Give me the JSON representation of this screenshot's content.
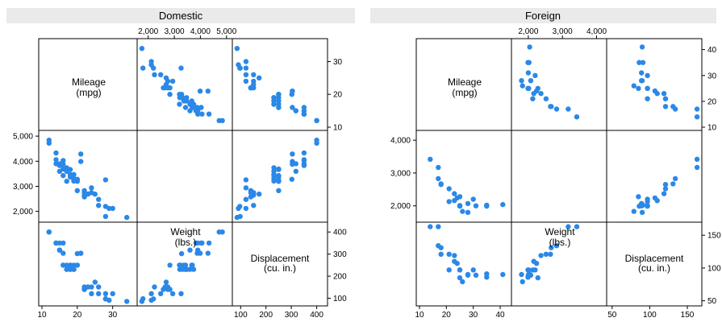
{
  "chart_data": [
    {
      "type": "scatter",
      "title": "Domestic",
      "variables": [
        {
          "label": "Mileage",
          "unit": "(mpg)",
          "range": [
            10,
            36
          ],
          "ticks": [
            10,
            20,
            30
          ],
          "tick_labels": [
            "10",
            "20",
            "30"
          ]
        },
        {
          "label": "Weight",
          "unit": "(lbs.)",
          "range": [
            1700,
            5100
          ],
          "ticks": [
            2000,
            3000,
            4000,
            5000
          ],
          "tick_labels": [
            "2,000",
            "3,000",
            "4,000",
            "5,000"
          ]
        },
        {
          "label": "Displacement",
          "unit": "(cu. in.)",
          "range": [
            80,
            430
          ],
          "ticks": [
            100,
            200,
            300,
            400
          ],
          "tick_labels": [
            "100",
            "200",
            "300",
            "400"
          ]
        }
      ],
      "records": [
        [
          12,
          4720,
          400
        ],
        [
          12,
          4840,
          400
        ],
        [
          14,
          4060,
          350
        ],
        [
          14,
          3900,
          350
        ],
        [
          14,
          4330,
          350
        ],
        [
          15,
          3600,
          318
        ],
        [
          15,
          3830,
          350
        ],
        [
          15,
          3900,
          318
        ],
        [
          16,
          3690,
          250
        ],
        [
          16,
          3430,
          250
        ],
        [
          16,
          4030,
          350
        ],
        [
          16,
          3880,
          304
        ],
        [
          17,
          3740,
          231
        ],
        [
          17,
          3600,
          231
        ],
        [
          17,
          3200,
          250
        ],
        [
          18,
          3470,
          231
        ],
        [
          18,
          3370,
          250
        ],
        [
          18,
          3420,
          231
        ],
        [
          18,
          3670,
          250
        ],
        [
          19,
          3470,
          231
        ],
        [
          19,
          3210,
          231
        ],
        [
          19,
          3310,
          231
        ],
        [
          19,
          3250,
          250
        ],
        [
          20,
          3280,
          302
        ],
        [
          20,
          3200,
          250
        ],
        [
          20,
          2830,
          250
        ],
        [
          21,
          4290,
          304
        ],
        [
          21,
          3990,
          304
        ],
        [
          22,
          2580,
          140
        ],
        [
          22,
          2750,
          140
        ],
        [
          22,
          2830,
          140
        ],
        [
          22,
          2650,
          151
        ],
        [
          23,
          2690,
          151
        ],
        [
          24,
          2750,
          151
        ],
        [
          24,
          2940,
          121
        ],
        [
          25,
          2690,
          173
        ],
        [
          26,
          2480,
          121
        ],
        [
          26,
          2240,
          151
        ],
        [
          28,
          1800,
          98
        ],
        [
          28,
          3260,
          121
        ],
        [
          28,
          2200,
          97
        ],
        [
          29,
          2120,
          91
        ],
        [
          30,
          2120,
          121
        ],
        [
          34,
          1760,
          86
        ]
      ]
    },
    {
      "type": "scatter",
      "title": "Foreign",
      "variables": [
        {
          "label": "Mileage",
          "unit": "(mpg)",
          "range": [
            10,
            43
          ],
          "ticks": [
            10,
            20,
            30,
            40
          ],
          "tick_labels": [
            "10",
            "20",
            "30",
            "40"
          ]
        },
        {
          "label": "Weight",
          "unit": "(lbs.)",
          "range": [
            1600,
            4200
          ],
          "ticks": [
            2000,
            3000,
            4000
          ],
          "tick_labels": [
            "2,000",
            "3,000",
            "4,000"
          ]
        },
        {
          "label": "Displacement",
          "unit": "(cu. in.)",
          "range": [
            47,
            165
          ],
          "ticks": [
            50,
            100,
            150
          ],
          "tick_labels": [
            "50",
            "100",
            "150"
          ]
        }
      ],
      "records": [
        [
          14,
          3420,
          163
        ],
        [
          17,
          3170,
          163
        ],
        [
          17,
          2830,
          134
        ],
        [
          18,
          2670,
          131
        ],
        [
          18,
          2650,
          121
        ],
        [
          21,
          2520,
          121
        ],
        [
          21,
          2130,
          97
        ],
        [
          23,
          2370,
          119
        ],
        [
          23,
          2160,
          110
        ],
        [
          24,
          2240,
          107
        ],
        [
          25,
          2280,
          85
        ],
        [
          25,
          2010,
          97
        ],
        [
          25,
          1990,
          97
        ],
        [
          26,
          1830,
          79
        ],
        [
          28,
          2070,
          89
        ],
        [
          28,
          1800,
          90
        ],
        [
          30,
          2200,
          97
        ],
        [
          31,
          2000,
          89
        ],
        [
          35,
          1990,
          86
        ],
        [
          35,
          2020,
          91
        ],
        [
          41,
          2040,
          90
        ]
      ]
    }
  ]
}
